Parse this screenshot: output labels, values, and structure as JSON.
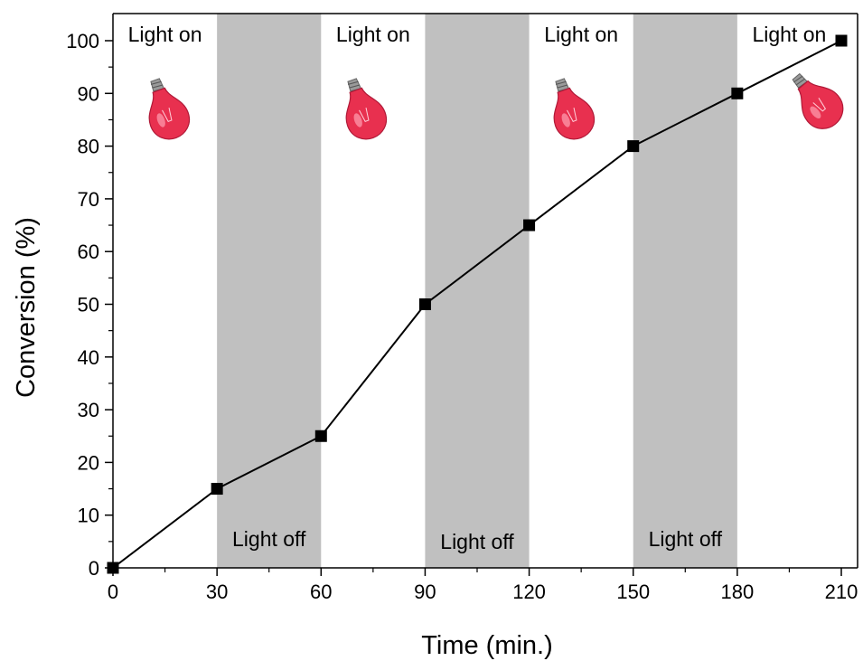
{
  "chart_data": {
    "type": "line",
    "title": "",
    "xlabel": "Time (min.)",
    "ylabel": "Conversion (%)",
    "xlim": [
      0,
      210
    ],
    "ylim": [
      0,
      100
    ],
    "xticks": [
      0,
      30,
      60,
      90,
      120,
      150,
      180,
      210
    ],
    "yticks": [
      0,
      10,
      20,
      30,
      40,
      50,
      60,
      70,
      80,
      90,
      100
    ],
    "grid": false,
    "legend": "none",
    "series": [
      {
        "x": [
          0,
          30,
          60,
          90,
          120,
          150,
          180,
          210
        ],
        "y": [
          0,
          15,
          25,
          50,
          65,
          80,
          90,
          100
        ],
        "marker": "square",
        "color": "#000000"
      }
    ],
    "shaded_regions": [
      {
        "x_start": 30,
        "x_end": 60,
        "label": "Light off"
      },
      {
        "x_start": 90,
        "x_end": 120,
        "label": "Light off"
      },
      {
        "x_start": 150,
        "x_end": 180,
        "label": "Light off"
      }
    ],
    "light_on_labels": [
      {
        "x": 0,
        "label": "Light on"
      },
      {
        "x": 60,
        "label": "Light on"
      },
      {
        "x": 120,
        "label": "Light on"
      },
      {
        "x": 180,
        "label": "Light on"
      }
    ],
    "region_color": "#c0c0c0",
    "bulb_icon": "red-light-bulb-icon",
    "bulb_color": "#e8304f"
  }
}
